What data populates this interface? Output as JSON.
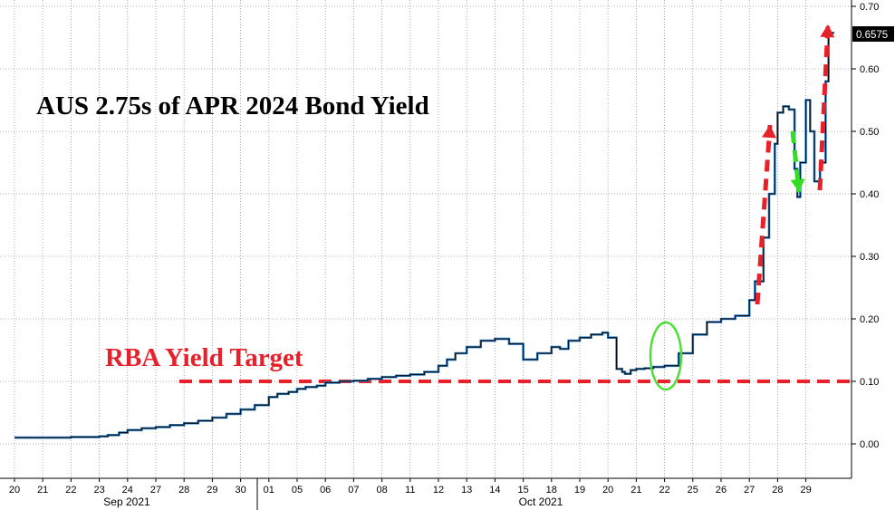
{
  "chart_data": {
    "type": "line",
    "title": "AUS 2.75s of APR 2024 Bond Yield",
    "annotation": "RBA Yield Target",
    "target_level": 0.1,
    "last_value_label": "0.6575",
    "last_value": 0.6575,
    "ylim": [
      -0.05,
      0.7
    ],
    "y_ticks": [
      "0.70",
      "0.60",
      "0.50",
      "0.40",
      "0.30",
      "0.20",
      "0.10",
      "0.00"
    ],
    "y_tick_values": [
      0.7,
      0.6,
      0.5,
      0.4,
      0.3,
      0.2,
      0.1,
      0.0
    ],
    "x_ticks": [
      "20",
      "21",
      "22",
      "23",
      "24",
      "27",
      "28",
      "29",
      "30",
      "01",
      "05",
      "06",
      "07",
      "08",
      "11",
      "12",
      "13",
      "14",
      "15",
      "18",
      "19",
      "20",
      "21",
      "22",
      "25",
      "26",
      "27",
      "28",
      "29"
    ],
    "month_labels": [
      "Sep 2021",
      "Oct 2021"
    ],
    "grid": true,
    "series": [
      {
        "color": "#000000",
        "x": [
          0,
          1,
          2,
          3,
          3.3,
          3.7,
          4,
          4.5,
          5,
          5.5,
          6,
          6.5,
          7,
          7.5,
          8,
          8.5,
          9,
          9.3,
          9.7,
          10,
          10.3,
          10.7,
          11,
          11.5,
          12,
          12.5,
          13,
          13.5,
          14,
          14.5,
          15,
          15.3,
          15.6,
          16,
          16.5,
          17,
          17.5,
          18,
          18.5,
          19,
          19.3,
          19.6,
          20,
          20.4,
          20.8,
          21,
          21.3,
          21.5,
          21.6,
          21.8,
          22,
          22.3,
          22.6,
          23,
          23.5,
          24,
          24.5,
          25,
          25.5,
          26,
          26.2,
          26.5,
          26.7,
          26.9,
          27,
          27.2,
          27.4,
          27.6,
          27.7,
          27.8,
          28,
          28.15,
          28.3,
          28.5,
          28.7,
          28.8,
          28.9,
          29
        ],
        "y": [
          0.01,
          0.01,
          0.011,
          0.012,
          0.014,
          0.018,
          0.022,
          0.025,
          0.027,
          0.03,
          0.033,
          0.037,
          0.042,
          0.048,
          0.055,
          0.062,
          0.075,
          0.08,
          0.083,
          0.088,
          0.091,
          0.093,
          0.098,
          0.1,
          0.101,
          0.104,
          0.107,
          0.109,
          0.111,
          0.115,
          0.125,
          0.135,
          0.145,
          0.155,
          0.165,
          0.168,
          0.16,
          0.135,
          0.145,
          0.155,
          0.152,
          0.165,
          0.17,
          0.175,
          0.178,
          0.17,
          0.12,
          0.115,
          0.112,
          0.118,
          0.12,
          0.121,
          0.123,
          0.125,
          0.145,
          0.175,
          0.195,
          0.2,
          0.205,
          0.23,
          0.26,
          0.33,
          0.4,
          0.48,
          0.53,
          0.54,
          0.535,
          0.44,
          0.395,
          0.45,
          0.55,
          0.5,
          0.42,
          0.45,
          0.58,
          0.6575,
          0.6575,
          0.6575
        ]
      }
    ]
  }
}
